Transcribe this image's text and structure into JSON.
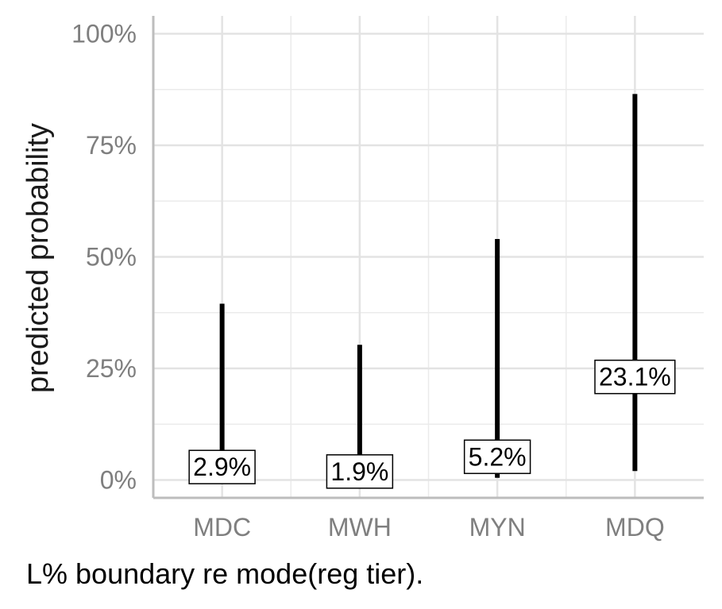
{
  "chart_data": {
    "type": "errorbar",
    "categories": [
      "MDC",
      "MWH",
      "MYN",
      "MDQ"
    ],
    "estimates": [
      2.9,
      1.9,
      5.2,
      23.1
    ],
    "lower": [
      0.0,
      0.0,
      0.5,
      2.0
    ],
    "upper": [
      39.5,
      30.3,
      54.0,
      86.5
    ],
    "value_labels": [
      "2.9%",
      "1.9%",
      "5.2%",
      "23.1%"
    ],
    "ylabel": "predicted probability",
    "xlabel": "",
    "ylim": [
      -4,
      104
    ],
    "yticks": [
      0,
      25,
      50,
      75,
      100
    ],
    "ytick_labels": [
      "0%",
      "25%",
      "50%",
      "75%",
      "100%"
    ],
    "grid": true,
    "caption": "L% boundary re mode(reg tier)."
  }
}
